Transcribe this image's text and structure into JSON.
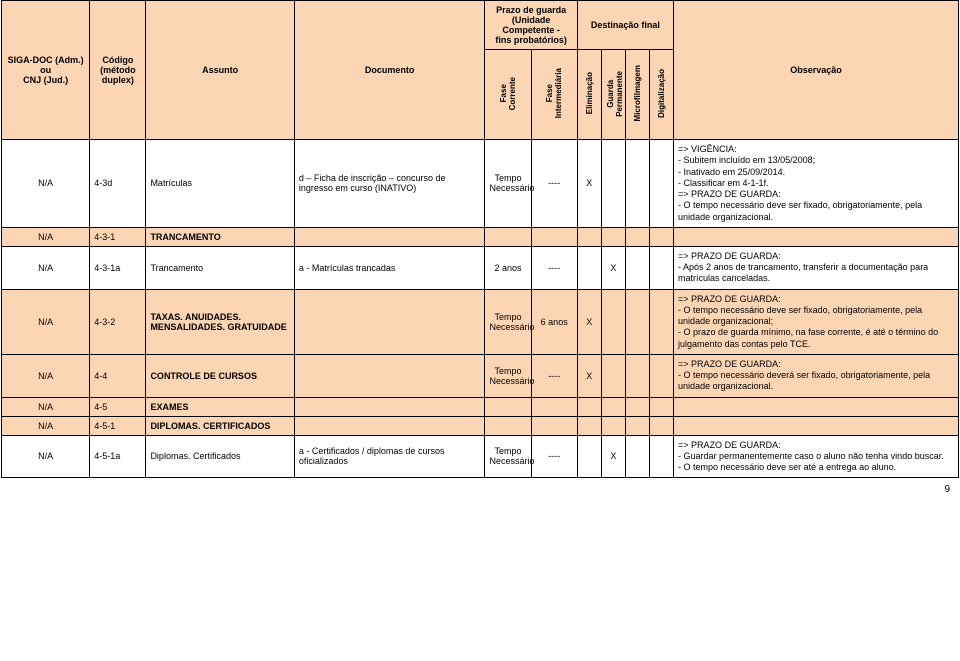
{
  "header": {
    "col1": "SIGA-DOC (Adm.)\nou\nCNJ (Jud.)",
    "col2": "Código\n(método\nduplex)",
    "col3": "Assunto",
    "col4": "Documento",
    "prazo_group": "Prazo de guarda\n(Unidade Competente -\nfins probatórios)",
    "dest_group": "Destinação final",
    "col_obs": "Observação",
    "fc": "Fase\nCorrente",
    "fi": "Fase\nIntermediária",
    "elim": "Eliminação",
    "guarda": "Guarda\nPermanente",
    "micro": "Microfilmagem",
    "digit": "Digitalização"
  },
  "rows": [
    {
      "na": "N/A",
      "cod": "4-3d",
      "ass": "Matrículas",
      "doc": "d – Ficha de inscrição – concurso de ingresso em curso (INATIVO)",
      "fc": "Tempo\nNecessário",
      "fi": "----",
      "e": "X",
      "g": "",
      "m": "",
      "d": "",
      "obs": "=> VIGÊNCIA:\n- Subitem incluído em 13/05/2008;\n- Inativado em 25/09/2014.\n- Classificar em 4-1-1f.\n=> PRAZO DE GUARDA:\n- O tempo necessário deve ser fixado, obrigatoriamente, pela unidade organizacional.",
      "pink": false
    },
    {
      "na": "N/A",
      "cod": "4-3-1",
      "ass": "TRANCAMENTO",
      "doc": "",
      "fc": "",
      "fi": "",
      "e": "",
      "g": "",
      "m": "",
      "d": "",
      "obs": "",
      "pink": true
    },
    {
      "na": "N/A",
      "cod": "4-3-1a",
      "ass": "Trancamento",
      "doc": "a - Matrículas trancadas",
      "fc": "2 anos",
      "fi": "----",
      "e": "",
      "g": "X",
      "m": "",
      "d": "",
      "obs": "=> PRAZO DE GUARDA:\n- Após 2 anos de trancamento, transferir a documentação para matrículas canceladas.",
      "pink": false
    },
    {
      "na": "N/A",
      "cod": "4-3-2",
      "ass": "TAXAS. ANUIDADES. MENSALIDADES. GRATUIDADE",
      "doc": "",
      "fc": "Tempo\nNecessário",
      "fi": "6 anos",
      "e": "X",
      "g": "",
      "m": "",
      "d": "",
      "obs": "=> PRAZO DE GUARDA:\n- O tempo necessário deve ser fixado, obrigatoriamente, pela unidade organizacional;\n- O prazo de guarda mínimo, na fase corrente, é até o término do julgamento das contas pelo TCE.",
      "pink": true
    },
    {
      "na": "N/A",
      "cod": "4-4",
      "ass": "CONTROLE DE CURSOS",
      "doc": "",
      "fc": "Tempo\nNecessário",
      "fi": "----",
      "e": "X",
      "g": "",
      "m": "",
      "d": "",
      "obs": "=> PRAZO DE GUARDA:\n- O tempo necessário deverá ser fixado, obrigatoriamente, pela unidade organizacional.",
      "pink": true
    },
    {
      "na": "N/A",
      "cod": "4-5",
      "ass": "EXAMES",
      "doc": "",
      "fc": "",
      "fi": "",
      "e": "",
      "g": "",
      "m": "",
      "d": "",
      "obs": "",
      "pink": true
    },
    {
      "na": "N/A",
      "cod": "4-5-1",
      "ass": "DIPLOMAS. CERTIFICADOS",
      "doc": "",
      "fc": "",
      "fi": "",
      "e": "",
      "g": "",
      "m": "",
      "d": "",
      "obs": "",
      "pink": true
    },
    {
      "na": "N/A",
      "cod": "4-5-1a",
      "ass": "Diplomas. Certificados",
      "doc": "a - Certificados / diplomas de cursos oficializados",
      "fc": "Tempo\nNecessário",
      "fi": "----",
      "e": "",
      "g": "X",
      "m": "",
      "d": "",
      "obs": "=> PRAZO DE GUARDA:\n - Guardar permanentemente caso o aluno não tenha vindo buscar.\n- O tempo necessário deve ser até a entrega ao aluno.",
      "pink": false
    }
  ],
  "page_number": "9"
}
